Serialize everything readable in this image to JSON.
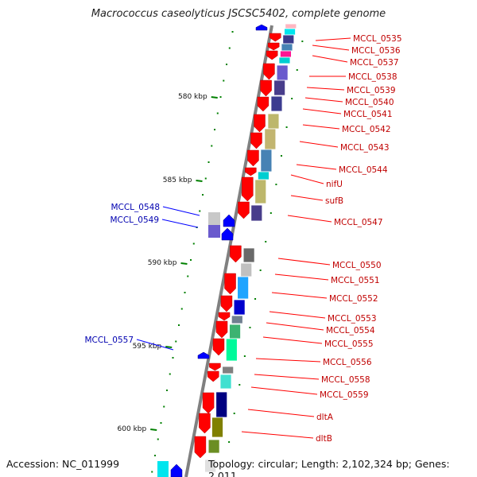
{
  "title": "Macrococcus caseolyticus JSCSC5402, complete genome",
  "footer": {
    "accession": "Accession: NC_011999",
    "topology": "Topology: circular; Length: 2,102,324 bp; Genes: 2,011"
  },
  "colors": {
    "forward_gene": "#ff0000",
    "reverse_gene": "#0000ff",
    "backbone": "#808080",
    "tick": "#008000"
  },
  "kbp_ticks": [
    "580 kbp",
    "585 kbp",
    "590 kbp",
    "595 kbp",
    "600 kbp"
  ],
  "forward_labels": [
    "MCCL_0535",
    "MCCL_0536",
    "MCCL_0537",
    "MCCL_0538",
    "MCCL_0539",
    "MCCL_0540",
    "MCCL_0541",
    "MCCL_0542",
    "MCCL_0543",
    "MCCL_0544",
    "nifU",
    "sufB",
    "MCCL_0547",
    "MCCL_0550",
    "MCCL_0551",
    "MCCL_0552",
    "MCCL_0553",
    "MCCL_0554",
    "MCCL_0555",
    "MCCL_0556",
    "MCCL_0558",
    "MCCL_0559",
    "dltA",
    "dltB"
  ],
  "reverse_labels": [
    "MCCL_0548",
    "MCCL_0549",
    "MCCL_0557"
  ]
}
